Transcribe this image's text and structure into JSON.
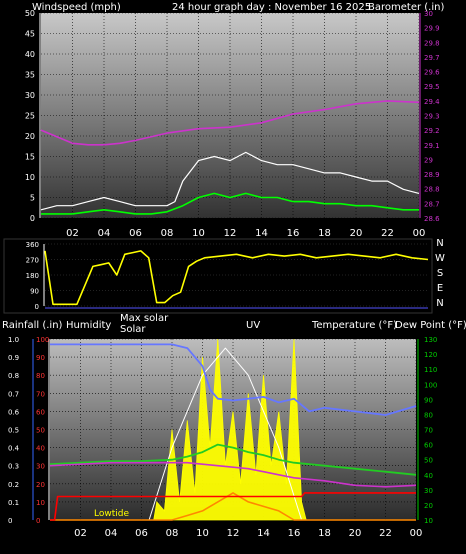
{
  "header": {
    "left": "Windspeed (mph)",
    "center": "24 hour graph day : November 16 2025",
    "right": "Barometer (.in)"
  },
  "time_ticks": [
    "02",
    "04",
    "06",
    "08",
    "10",
    "12",
    "14",
    "16",
    "18",
    "20",
    "22",
    "00"
  ],
  "colors": {
    "wind_avg": "#00ff00",
    "wind_gust": "#ffffff",
    "barometer": "#cc33cc",
    "direction": "#ffff00",
    "rain_axis": "#3366ff",
    "humidity": "#6677ff",
    "solar": "#ffff00",
    "uv": "#ff8800",
    "temperature": "#22cc22",
    "dew_point": "#cc33cc",
    "bottom_right_axis": "#00cc00",
    "low_tide": "#ff0000"
  },
  "chart_data": [
    {
      "type": "line",
      "title": "",
      "x_ticks": [
        "02",
        "04",
        "06",
        "08",
        "10",
        "12",
        "14",
        "16",
        "18",
        "20",
        "22",
        "00"
      ],
      "x_range_hours": [
        0,
        24
      ],
      "left_axis": {
        "label": "Windspeed (mph)",
        "ylim": [
          0,
          50
        ],
        "ticks": [
          0,
          5,
          10,
          15,
          20,
          25,
          30,
          35,
          40,
          45,
          50
        ]
      },
      "right_axis": {
        "label": "Barometer (.in)",
        "ylim": [
          28.6,
          30.0
        ],
        "ticks": [
          "28.6",
          "28.7",
          "28.8",
          "28.9",
          "29",
          "29.1",
          "29.2",
          "29.3",
          "29.4",
          "29.5",
          "29.6",
          "29.7",
          "29.8",
          "29.9",
          "30"
        ]
      },
      "series": [
        {
          "axis": "left",
          "key": "gust",
          "x": [
            0,
            1,
            2,
            3,
            4,
            5,
            6,
            7,
            7.5,
            8,
            8.5,
            9,
            10,
            11,
            12,
            13,
            14,
            15,
            16,
            17,
            18,
            19,
            20,
            21,
            22,
            23,
            24
          ],
          "y": [
            2,
            3,
            3,
            4,
            5,
            4,
            3,
            3,
            3,
            3,
            4,
            9,
            14,
            15,
            14,
            16,
            14,
            13,
            13,
            12,
            11,
            11,
            10,
            9,
            9,
            7,
            6
          ]
        },
        {
          "axis": "left",
          "key": "avg",
          "x": [
            0,
            1,
            2,
            3,
            4,
            5,
            6,
            7,
            8,
            9,
            10,
            11,
            12,
            13,
            14,
            15,
            16,
            17,
            18,
            19,
            20,
            21,
            22,
            23,
            24
          ],
          "y": [
            1,
            1,
            1,
            1.5,
            2,
            1.5,
            1,
            1,
            1.5,
            3,
            5,
            6,
            5,
            6,
            5,
            5,
            4,
            4,
            3.5,
            3.5,
            3,
            3,
            2.5,
            2,
            2
          ]
        },
        {
          "axis": "right",
          "key": "barometer",
          "x": [
            0,
            2,
            3,
            4,
            5,
            6,
            8,
            10,
            12,
            14,
            16,
            18,
            19,
            20,
            22,
            24
          ],
          "y": [
            29.2,
            29.11,
            29.1,
            29.1,
            29.11,
            29.13,
            29.18,
            29.21,
            29.22,
            29.25,
            29.31,
            29.34,
            29.36,
            29.38,
            29.4,
            29.39
          ]
        }
      ]
    },
    {
      "type": "line",
      "title": "",
      "x_range_hours": [
        0,
        24
      ],
      "left_axis": {
        "ylim": [
          0,
          360
        ],
        "ticks": [
          0,
          90,
          180,
          270,
          360
        ]
      },
      "right_labels": [
        "N",
        "W",
        "S",
        "E",
        "N"
      ],
      "series": [
        {
          "key": "direction",
          "x": [
            0,
            0.5,
            1,
            2,
            3,
            3.5,
            4,
            4.5,
            5,
            5.5,
            6,
            6.5,
            7,
            7.5,
            8,
            8.5,
            9,
            9.5,
            10,
            11,
            12,
            13,
            14,
            15,
            16,
            17,
            18,
            19,
            20,
            21,
            22,
            23,
            24
          ],
          "y": [
            320,
            10,
            10,
            10,
            230,
            240,
            250,
            180,
            300,
            310,
            320,
            280,
            20,
            20,
            60,
            80,
            230,
            260,
            280,
            290,
            300,
            280,
            300,
            290,
            300,
            280,
            290,
            300,
            290,
            280,
            300,
            280,
            270
          ]
        }
      ]
    },
    {
      "type": "line",
      "title": "",
      "x_range_hours": [
        0,
        24
      ],
      "header_labels": [
        "Rainfall (.in)",
        "Humidity",
        "Max solar",
        "Solar",
        "UV",
        "Temperature (°F)",
        "Dew Point (°F)"
      ],
      "left_outer_axis": {
        "label": "Rainfall (.in)",
        "ylim": [
          0,
          1.0
        ],
        "ticks": [
          "0",
          "0.1",
          "0.2",
          "0.3",
          "0.4",
          "0.5",
          "0.6",
          "0.7",
          "0.8",
          "0.9",
          "1.0"
        ]
      },
      "left_inner_axis": {
        "label": "Humidity",
        "ylim": [
          0,
          100
        ],
        "ticks": [
          0,
          10,
          20,
          30,
          40,
          50,
          60,
          70,
          80,
          90,
          100
        ]
      },
      "right_axis": {
        "label": "Temperature (°F)",
        "ylim": [
          10,
          130
        ],
        "ticks": [
          10,
          20,
          30,
          40,
          50,
          60,
          70,
          80,
          90,
          100,
          110,
          120,
          130
        ]
      },
      "annotations": [
        "Lowtide"
      ],
      "series": [
        {
          "key": "humidity",
          "x": [
            0,
            2,
            4,
            6,
            8,
            9,
            10,
            10.5,
            11,
            12,
            13,
            14,
            15,
            16,
            17,
            18,
            20,
            22,
            24
          ],
          "y": [
            97,
            97,
            97,
            97,
            97,
            95,
            85,
            72,
            67,
            66,
            67,
            68,
            65,
            67,
            60,
            62,
            60,
            58,
            63
          ]
        },
        {
          "key": "max_solar",
          "x": [
            0,
            6.5,
            8,
            10,
            11.5,
            13,
            15,
            16.5,
            24
          ],
          "y": [
            0,
            0,
            40,
            80,
            95,
            80,
            40,
            0,
            0
          ]
        },
        {
          "key": "solar",
          "x": [
            0,
            6.8,
            7,
            7.5,
            8,
            8.5,
            9,
            9.5,
            10,
            10.5,
            11,
            11.5,
            12,
            12.5,
            13,
            13.5,
            14,
            14.5,
            15,
            15.5,
            16,
            16.5,
            16.8,
            24
          ],
          "y": [
            0,
            0,
            10,
            5,
            50,
            10,
            55,
            15,
            90,
            40,
            100,
            30,
            60,
            20,
            70,
            25,
            80,
            30,
            60,
            20,
            100,
            10,
            0,
            0
          ]
        },
        {
          "key": "uv",
          "x": [
            0,
            8,
            9,
            10,
            11,
            12,
            13,
            14,
            15,
            16,
            24
          ],
          "y": [
            0,
            0,
            0.5,
            1,
            2,
            3,
            2,
            1.5,
            1,
            0,
            0
          ]
        },
        {
          "key": "temperature",
          "x": [
            0,
            2,
            4,
            6,
            8,
            9,
            10,
            11,
            12,
            13,
            14,
            15,
            16,
            18,
            20,
            22,
            24
          ],
          "y": [
            47,
            48,
            49,
            49,
            50,
            52,
            55,
            60,
            58,
            55,
            53,
            50,
            48,
            46,
            44,
            42,
            40
          ]
        },
        {
          "key": "dew_point",
          "x": [
            0,
            2,
            4,
            6,
            8,
            9,
            10,
            11,
            12,
            13,
            14,
            15,
            16,
            18,
            20,
            22,
            24
          ],
          "y": [
            46,
            47,
            48,
            48,
            48,
            48,
            47,
            46,
            45,
            44,
            42,
            40,
            38,
            36,
            33,
            32,
            33
          ]
        },
        {
          "key": "low_tide",
          "x": [
            0,
            0.3,
            0.5,
            16.5,
            16.7,
            24
          ],
          "y": [
            0,
            0,
            0.13,
            0.13,
            0.15,
            0.15
          ]
        }
      ]
    }
  ]
}
